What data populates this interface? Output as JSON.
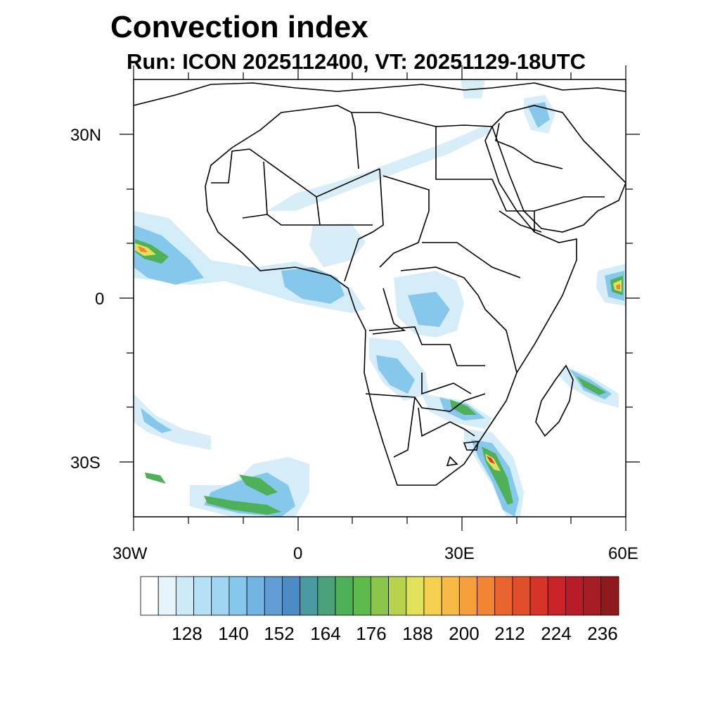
{
  "header": {
    "title": "Convection index",
    "subtitle": "Run: ICON 2025112400,  VT: 20251129-18UTC"
  },
  "map": {
    "lon_range": [
      -30,
      60
    ],
    "lat_range": [
      -40,
      40
    ],
    "lon_ticks": [
      "30W",
      "0",
      "30E",
      "60E"
    ],
    "lat_ticks": [
      "30N",
      "0",
      "30S"
    ]
  },
  "colorbar": {
    "colors": [
      "#ffffff",
      "#e6f4fb",
      "#cdeaf7",
      "#b6e0f4",
      "#9ed6f2",
      "#86c7ec",
      "#72b5e4",
      "#5f9dd4",
      "#4c8cc4",
      "#489a9e",
      "#4ba27a",
      "#4fb05a",
      "#5dbb4a",
      "#8ac44a",
      "#b7d24c",
      "#e3e05a",
      "#f5d050",
      "#f7bb45",
      "#f6a03d",
      "#f28434",
      "#ea652d",
      "#e14e2a",
      "#d73328",
      "#c92328",
      "#b81d27",
      "#a51c24",
      "#8e1a1c"
    ],
    "labels": [
      "128",
      "140",
      "152",
      "164",
      "176",
      "188",
      "200",
      "212",
      "224",
      "236"
    ]
  }
}
